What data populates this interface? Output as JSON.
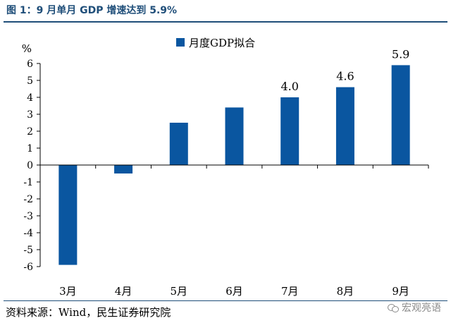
{
  "figure_title": "图 1：9 月单月 GDP 增速达到 5.9%",
  "source_text": "资料来源：Wind，民生证券研究院",
  "watermark_text": "宏观亮语",
  "watermark_icon": "wechat-icon",
  "colors": {
    "bar": "#0a56a0",
    "title": "#1f4e79",
    "axis": "#000000"
  },
  "chart_data": {
    "type": "bar",
    "categories": [
      "3月",
      "4月",
      "5月",
      "6月",
      "7月",
      "8月",
      "9月"
    ],
    "series": [
      {
        "name": "月度GDP拟合",
        "values": [
          -5.9,
          -0.5,
          2.5,
          3.4,
          4.0,
          4.6,
          5.9
        ]
      }
    ],
    "data_labels": [
      {
        "category": "7月",
        "text": "4.0"
      },
      {
        "category": "8月",
        "text": "4.6"
      },
      {
        "category": "9月",
        "text": "5.9"
      }
    ],
    "ylabel": "%",
    "ylim": [
      -6,
      6
    ],
    "yticks": [
      6,
      5,
      4,
      3,
      2,
      1,
      0,
      -1,
      -2,
      -3,
      -4,
      -5,
      -6
    ],
    "grid": false,
    "legend_position": "top-center"
  }
}
